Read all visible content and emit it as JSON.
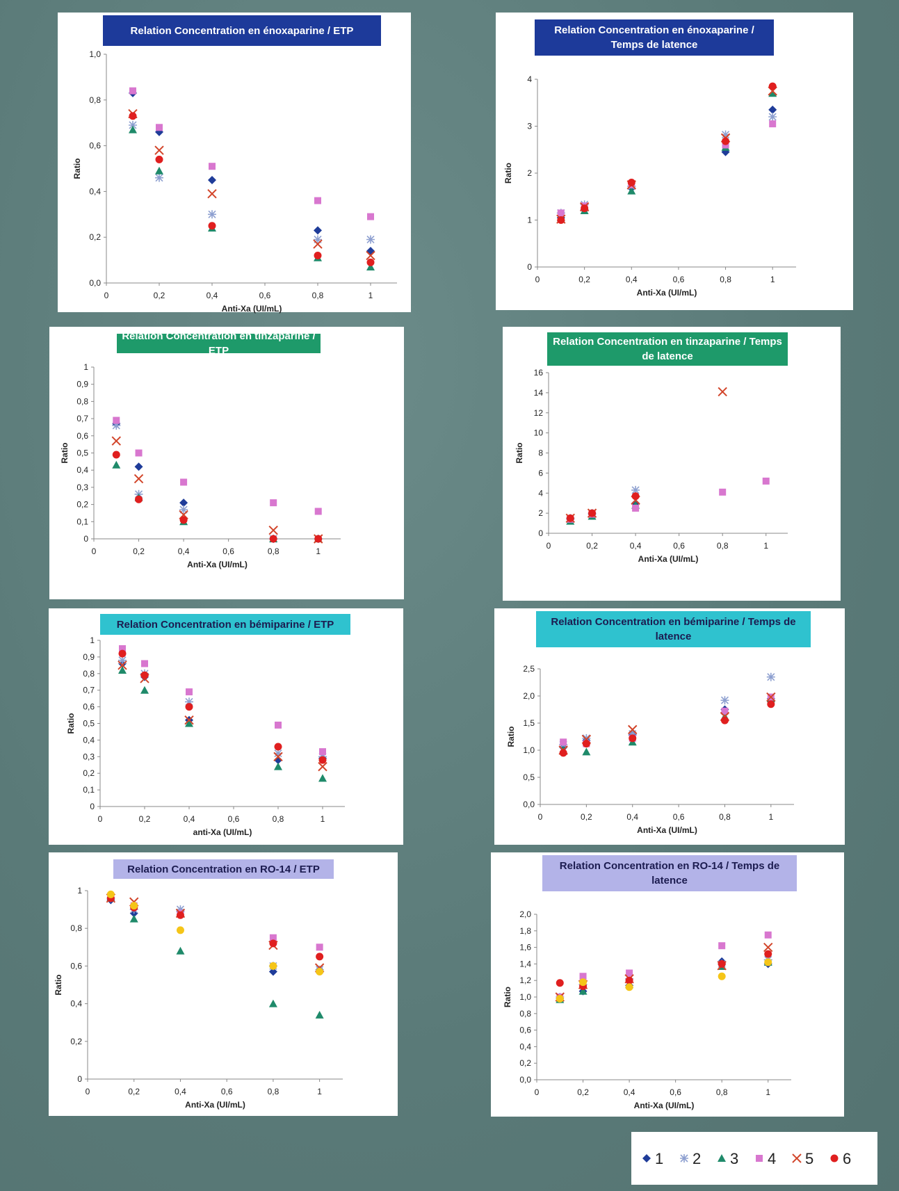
{
  "legend": {
    "series": [
      {
        "name": "1",
        "marker": "diamond",
        "color": "#1f3c99"
      },
      {
        "name": "2",
        "marker": "star",
        "color": "#8ea0d0"
      },
      {
        "name": "3",
        "marker": "triangle",
        "color": "#1f8a6a"
      },
      {
        "name": "4",
        "marker": "square",
        "color": "#d877cf"
      },
      {
        "name": "5",
        "marker": "x",
        "color": "#d2452a"
      },
      {
        "name": "6",
        "marker": "circle",
        "color": "#e01f1f"
      }
    ],
    "extra_series": {
      "marker": "circle",
      "color": "#f5c518"
    }
  },
  "chart_data": [
    {
      "id": "enox-etp",
      "type": "scatter",
      "title": "Relation Concentration en énoxaparine / ETP",
      "title_bg": "#1d3a9a",
      "title_color": "#ffffff",
      "xlabel": "Anti-Xa (UI/mL)",
      "ylabel": "Ratio",
      "xlim": [
        0,
        1.1
      ],
      "ylim": [
        0,
        1.0
      ],
      "xticks": [
        "0",
        "0,2",
        "0,4",
        "0,6",
        "0,8",
        "1"
      ],
      "xtick_values": [
        0,
        0.2,
        0.4,
        0.6,
        0.8,
        1
      ],
      "yticks": [
        "0,0",
        "0,2",
        "0,4",
        "0,6",
        "0,8",
        "1,0"
      ],
      "ytick_values": [
        0,
        0.2,
        0.4,
        0.6,
        0.8,
        1.0
      ],
      "x": [
        0.1,
        0.2,
        0.4,
        0.8,
        1
      ],
      "series": [
        {
          "legend_index": 0,
          "values": [
            0.83,
            0.66,
            0.45,
            0.23,
            0.14
          ]
        },
        {
          "legend_index": 1,
          "values": [
            0.69,
            0.46,
            0.3,
            0.19,
            0.19
          ]
        },
        {
          "legend_index": 2,
          "values": [
            0.67,
            0.49,
            0.24,
            0.11,
            0.07
          ]
        },
        {
          "legend_index": 3,
          "values": [
            0.84,
            0.68,
            0.51,
            0.36,
            0.29
          ]
        },
        {
          "legend_index": 4,
          "values": [
            0.74,
            0.58,
            0.39,
            0.17,
            0.12
          ]
        },
        {
          "legend_index": 5,
          "values": [
            0.73,
            0.54,
            0.25,
            0.12,
            0.09
          ]
        }
      ]
    },
    {
      "id": "enox-lat",
      "type": "scatter",
      "title": "Relation Concentration en énoxaparine / Temps de latence",
      "title_bg": "#1d3a9a",
      "title_color": "#ffffff",
      "xlabel": "Anti-Xa (UI/mL)",
      "ylabel": "Ratio",
      "xlim": [
        0,
        1.1
      ],
      "ylim": [
        0,
        4
      ],
      "xticks": [
        "0",
        "0,2",
        "0,4",
        "0,6",
        "0,8",
        "1"
      ],
      "xtick_values": [
        0,
        0.2,
        0.4,
        0.6,
        0.8,
        1
      ],
      "yticks": [
        "0",
        "1",
        "2",
        "3",
        "4"
      ],
      "ytick_values": [
        0,
        1,
        2,
        3,
        4
      ],
      "x": [
        0.1,
        0.2,
        0.4,
        0.8,
        1
      ],
      "series": [
        {
          "legend_index": 0,
          "values": [
            1.05,
            1.22,
            1.68,
            2.45,
            3.35
          ]
        },
        {
          "legend_index": 1,
          "values": [
            1.15,
            1.33,
            1.72,
            2.82,
            3.2
          ]
        },
        {
          "legend_index": 2,
          "values": [
            1.05,
            1.2,
            1.62,
            2.55,
            3.7
          ]
        },
        {
          "legend_index": 3,
          "values": [
            1.15,
            1.3,
            1.75,
            2.6,
            3.05
          ]
        },
        {
          "legend_index": 4,
          "values": [
            1.02,
            1.28,
            1.75,
            2.75,
            3.75
          ]
        },
        {
          "legend_index": 5,
          "values": [
            1.0,
            1.25,
            1.8,
            2.68,
            3.85
          ]
        }
      ]
    },
    {
      "id": "tinz-etp",
      "type": "scatter",
      "title": "Relation Concentration en tinzaparine / ETP",
      "title_bg": "#1e9a6a",
      "title_color": "#ffffff",
      "xlabel": "Anti-Xa (UI/mL)",
      "ylabel": "Ratio",
      "xlim": [
        0,
        1.1
      ],
      "ylim": [
        0,
        1
      ],
      "xticks": [
        "0",
        "0,2",
        "0,4",
        "0,6",
        "0,8",
        "1"
      ],
      "xtick_values": [
        0,
        0.2,
        0.4,
        0.6,
        0.8,
        1
      ],
      "yticks": [
        "0",
        "0,1",
        "0,2",
        "0,3",
        "0,4",
        "0,5",
        "0,6",
        "0,7",
        "0,8",
        "0,9",
        "1"
      ],
      "ytick_values": [
        0,
        0.1,
        0.2,
        0.3,
        0.4,
        0.5,
        0.6,
        0.7,
        0.8,
        0.9,
        1
      ],
      "x": [
        0.1,
        0.2,
        0.4,
        0.8,
        1
      ],
      "series": [
        {
          "legend_index": 0,
          "values": [
            0.67,
            0.42,
            0.21,
            0.0,
            0.0
          ]
        },
        {
          "legend_index": 1,
          "values": [
            0.66,
            0.26,
            0.17,
            0.0,
            0.0
          ]
        },
        {
          "legend_index": 2,
          "values": [
            0.43,
            0.24,
            0.1,
            0.0,
            0.0
          ]
        },
        {
          "legend_index": 3,
          "values": [
            0.69,
            0.5,
            0.33,
            0.21,
            0.16
          ]
        },
        {
          "legend_index": 4,
          "values": [
            0.57,
            0.35,
            0.14,
            0.05,
            0.0
          ]
        },
        {
          "legend_index": 5,
          "values": [
            0.49,
            0.23,
            0.11,
            0.0,
            0.0
          ]
        }
      ]
    },
    {
      "id": "tinz-lat",
      "type": "scatter",
      "title": "Relation Concentration en tinzaparine / Temps de latence",
      "title_bg": "#1e9a6a",
      "title_color": "#ffffff",
      "xlabel": "Anti-Xa (UI/mL)",
      "ylabel": "Ratio",
      "xlim": [
        0,
        1.1
      ],
      "ylim": [
        0,
        16
      ],
      "xticks": [
        "0",
        "0,2",
        "0,4",
        "0,6",
        "0,8",
        "1"
      ],
      "xtick_values": [
        0,
        0.2,
        0.4,
        0.6,
        0.8,
        1
      ],
      "yticks": [
        "0",
        "2",
        "4",
        "6",
        "8",
        "10",
        "12",
        "14",
        "16"
      ],
      "ytick_values": [
        0,
        2,
        4,
        6,
        8,
        10,
        12,
        14,
        16
      ],
      "x": [
        0.1,
        0.2,
        0.4,
        0.8,
        1
      ],
      "series": [
        {
          "legend_index": 0,
          "values": [
            1.4,
            1.9,
            3.0,
            null,
            null
          ]
        },
        {
          "legend_index": 1,
          "values": [
            1.5,
            2.0,
            4.3,
            null,
            null
          ]
        },
        {
          "legend_index": 2,
          "values": [
            1.2,
            1.7,
            2.8,
            null,
            null
          ]
        },
        {
          "legend_index": 3,
          "values": [
            1.4,
            1.9,
            2.5,
            4.1,
            5.2
          ]
        },
        {
          "legend_index": 4,
          "values": [
            1.5,
            2.0,
            3.3,
            14.1,
            null
          ]
        },
        {
          "legend_index": 5,
          "values": [
            1.5,
            2.0,
            3.7,
            null,
            null
          ]
        }
      ]
    },
    {
      "id": "bemi-etp",
      "type": "scatter",
      "title": "Relation Concentration en bémiparine / ETP",
      "title_bg": "#2fc2cf",
      "title_color": "#1c1c50",
      "xlabel": "anti-Xa (UI/mL)",
      "ylabel": "Ratio",
      "xlim": [
        0,
        1.1
      ],
      "ylim": [
        0,
        1
      ],
      "xticks": [
        "0",
        "0,2",
        "0,4",
        "0,6",
        "0,8",
        "1"
      ],
      "xtick_values": [
        0,
        0.2,
        0.4,
        0.6,
        0.8,
        1
      ],
      "yticks": [
        "0",
        "0,1",
        "0,2",
        "0,3",
        "0,4",
        "0,5",
        "0,6",
        "0,7",
        "0,8",
        "0,9",
        "1"
      ],
      "ytick_values": [
        0,
        0.1,
        0.2,
        0.3,
        0.4,
        0.5,
        0.6,
        0.7,
        0.8,
        0.9,
        1
      ],
      "x": [
        0.1,
        0.2,
        0.4,
        0.8,
        1
      ],
      "series": [
        {
          "legend_index": 0,
          "values": [
            0.86,
            0.78,
            0.52,
            0.28,
            0.29
          ]
        },
        {
          "legend_index": 1,
          "values": [
            0.88,
            0.8,
            0.63,
            0.32,
            0.3
          ]
        },
        {
          "legend_index": 2,
          "values": [
            0.82,
            0.7,
            0.5,
            0.24,
            0.17
          ]
        },
        {
          "legend_index": 3,
          "values": [
            0.95,
            0.86,
            0.69,
            0.49,
            0.33
          ]
        },
        {
          "legend_index": 4,
          "values": [
            0.85,
            0.77,
            0.52,
            0.3,
            0.24
          ]
        },
        {
          "legend_index": 5,
          "values": [
            0.92,
            0.79,
            0.6,
            0.36,
            0.28
          ]
        }
      ]
    },
    {
      "id": "bemi-lat",
      "type": "scatter",
      "title": "Relation Concentration en bémiparine / Temps de latence",
      "title_bg": "#2fc2cf",
      "title_color": "#1c1c50",
      "xlabel": "Anti-Xa (UI/mL)",
      "ylabel": "Ratio",
      "xlim": [
        0,
        1.1
      ],
      "ylim": [
        0,
        2.5
      ],
      "xticks": [
        "0",
        "0,2",
        "0,4",
        "0,6",
        "0,8",
        "1"
      ],
      "xtick_values": [
        0,
        0.2,
        0.4,
        0.6,
        0.8,
        1
      ],
      "yticks": [
        "0,0",
        "0,5",
        "1,0",
        "1,5",
        "2,0",
        "2,5"
      ],
      "ytick_values": [
        0,
        0.5,
        1.0,
        1.5,
        2.0,
        2.5
      ],
      "x": [
        0.1,
        0.2,
        0.4,
        0.8,
        1
      ],
      "series": [
        {
          "legend_index": 0,
          "values": [
            1.05,
            1.18,
            1.28,
            1.75,
            1.95
          ]
        },
        {
          "legend_index": 1,
          "values": [
            1.1,
            1.22,
            1.3,
            1.92,
            2.35
          ]
        },
        {
          "legend_index": 2,
          "values": [
            1.0,
            0.97,
            1.15,
            1.62,
            1.95
          ]
        },
        {
          "legend_index": 3,
          "values": [
            1.15,
            1.12,
            1.22,
            1.72,
            1.98
          ]
        },
        {
          "legend_index": 4,
          "values": [
            1.0,
            1.2,
            1.38,
            1.62,
            1.98
          ]
        },
        {
          "legend_index": 5,
          "values": [
            0.95,
            1.12,
            1.22,
            1.55,
            1.85
          ]
        }
      ]
    },
    {
      "id": "ro14-etp",
      "type": "scatter",
      "title": "Relation Concentration en RO-14 / ETP",
      "title_bg": "#b3b3e8",
      "title_color": "#1c1c50",
      "xlabel": "Anti-Xa (UI/mL)",
      "ylabel": "Ratio",
      "xlim": [
        0,
        1.1
      ],
      "ylim": [
        0,
        1
      ],
      "xticks": [
        "0",
        "0,2",
        "0,4",
        "0,6",
        "0,8",
        "1"
      ],
      "xtick_values": [
        0,
        0.2,
        0.4,
        0.6,
        0.8,
        1
      ],
      "yticks": [
        "0",
        "0,2",
        "0,4",
        "0,6",
        "0,8",
        "1"
      ],
      "ytick_values": [
        0,
        0.2,
        0.4,
        0.6,
        0.8,
        1
      ],
      "x": [
        0.1,
        0.2,
        0.4,
        0.8,
        1
      ],
      "series": [
        {
          "legend_index": 0,
          "values": [
            0.95,
            0.88,
            0.89,
            0.57,
            0.58
          ]
        },
        {
          "legend_index": 1,
          "values": [
            0.96,
            0.9,
            0.9,
            0.6,
            0.58
          ]
        },
        {
          "legend_index": 2,
          "values": [
            0.96,
            0.85,
            0.68,
            0.4,
            0.34
          ]
        },
        {
          "legend_index": 3,
          "values": [
            0.97,
            0.92,
            0.88,
            0.75,
            0.7
          ]
        },
        {
          "legend_index": 4,
          "values": [
            0.96,
            0.94,
            0.88,
            0.71,
            0.59
          ]
        },
        {
          "legend_index": 5,
          "values": [
            0.96,
            0.91,
            0.87,
            0.72,
            0.65
          ]
        },
        {
          "legend_index": -1,
          "values": [
            0.98,
            0.92,
            0.79,
            0.6,
            0.57
          ]
        }
      ]
    },
    {
      "id": "ro14-lat",
      "type": "scatter",
      "title": "Relation Concentration en RO-14 / Temps de latence",
      "title_bg": "#b3b3e8",
      "title_color": "#1c1c50",
      "xlabel": "Anti-Xa (UI/mL)",
      "ylabel": "Ratio",
      "xlim": [
        0,
        1.1
      ],
      "ylim": [
        0,
        2.0
      ],
      "xticks": [
        "0",
        "0,2",
        "0,4",
        "0,6",
        "0,8",
        "1"
      ],
      "xtick_values": [
        0,
        0.2,
        0.4,
        0.6,
        0.8,
        1
      ],
      "yticks": [
        "0,0",
        "0,2",
        "0,4",
        "0,6",
        "0,8",
        "1,0",
        "1,2",
        "1,4",
        "1,6",
        "1,8",
        "2,0"
      ],
      "ytick_values": [
        0,
        0.2,
        0.4,
        0.6,
        0.8,
        1.0,
        1.2,
        1.4,
        1.6,
        1.8,
        2.0
      ],
      "x": [
        0.1,
        0.2,
        0.4,
        0.8,
        1
      ],
      "series": [
        {
          "legend_index": 0,
          "values": [
            0.98,
            1.07,
            1.14,
            1.43,
            1.4
          ]
        },
        {
          "legend_index": 1,
          "values": [
            1.0,
            1.15,
            1.22,
            1.4,
            1.45
          ]
        },
        {
          "legend_index": 2,
          "values": [
            0.97,
            1.07,
            1.15,
            1.37,
            1.42
          ]
        },
        {
          "legend_index": 3,
          "values": [
            1.0,
            1.25,
            1.29,
            1.62,
            1.75
          ]
        },
        {
          "legend_index": 4,
          "values": [
            1.0,
            1.15,
            1.22,
            1.38,
            1.6
          ]
        },
        {
          "legend_index": 5,
          "values": [
            1.17,
            1.13,
            1.2,
            1.4,
            1.52
          ]
        },
        {
          "legend_index": -1,
          "values": [
            0.98,
            1.18,
            1.12,
            1.25,
            1.42
          ]
        }
      ]
    }
  ]
}
